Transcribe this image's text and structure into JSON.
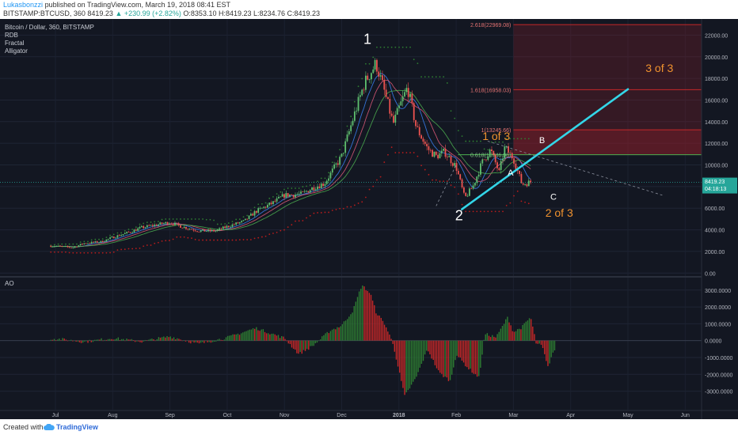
{
  "header": {
    "author": "Lukasbonzzi",
    "published": "published on TradingView.com, March 19, 2018 08:41 EST",
    "symbol": "BITSTAMP:BTCUSD, 360",
    "price": "8419.23",
    "change": "▲ +230.99 (+2.82%)",
    "ohlc": "O:8353.10 H:8419.23 L:8234.76 C:8419.23"
  },
  "legend": {
    "title": "Bitcoin / Dollar, 360, BITSTAMP",
    "indicators": [
      "RDB",
      "Fractal",
      "Alligator"
    ],
    "ao_label": "AO"
  },
  "footer": {
    "created": "Created with",
    "brand": "TradingView"
  },
  "colors": {
    "background": "#131722",
    "up": "#26a69a",
    "wave_line": "#33d6e8",
    "fib_zone": "#8e1f2a",
    "fib_line": "#c62828",
    "wave_orange": "#f0922e",
    "ao_green": "#2e7d32",
    "ao_red": "#c62828"
  },
  "chart_data": [
    {
      "type": "line",
      "title": "Bitcoin / Dollar, 360, BITSTAMP",
      "x_axis_labels": [
        "Jul",
        "Aug",
        "Sep",
        "Oct",
        "Nov",
        "Dec",
        "2018",
        "Feb",
        "Mar",
        "Apr",
        "May",
        "Jun"
      ],
      "y_ticks": [
        0,
        2000,
        4000,
        6000,
        8000,
        10000,
        12000,
        14000,
        16000,
        18000,
        20000,
        22000
      ],
      "y_tick_labels": [
        "0.00",
        "2000.00",
        "4000.00",
        "6000.00",
        "8000.00",
        "10000.00",
        "12000.00",
        "14000.00",
        "16000.00",
        "18000.00",
        "20000.00",
        "22000.00"
      ],
      "ylim": [
        -200,
        23200
      ],
      "x_month_index": [
        0,
        1,
        2,
        3,
        4,
        5,
        6,
        7,
        8,
        9,
        10,
        11
      ],
      "price_series": {
        "x": [
          -0.6,
          -0.3,
          0.0,
          0.3,
          0.5,
          0.8,
          1.0,
          1.3,
          1.5,
          1.8,
          2.0,
          2.2,
          2.5,
          2.8,
          3.0,
          3.3,
          3.5,
          3.8,
          4.0,
          4.3,
          4.5,
          4.7,
          5.0,
          5.2,
          5.4,
          5.6,
          5.75,
          5.9,
          6.0,
          6.15,
          6.3,
          6.5,
          6.65,
          6.8,
          7.0,
          7.15,
          7.3,
          7.45,
          7.6,
          7.75,
          7.85,
          8.0,
          8.15,
          8.3
        ],
        "y": [
          2600,
          2550,
          2500,
          2350,
          2750,
          2900,
          3300,
          3800,
          4200,
          4500,
          4700,
          4300,
          3900,
          3900,
          4300,
          4800,
          5700,
          6500,
          7200,
          7300,
          7900,
          8300,
          10800,
          14300,
          17600,
          19400,
          16700,
          13800,
          15200,
          17200,
          13500,
          11500,
          10800,
          11200,
          9800,
          6900,
          8100,
          10200,
          11400,
          9300,
          11600,
          10600,
          8200,
          8419
        ]
      },
      "fibonacci_levels": [
        {
          "ratio": "2.618",
          "price": 22969.08,
          "label": "2.618(22969.08)"
        },
        {
          "ratio": "1.618",
          "price": 16958.03,
          "label": "1.618(16958.03)"
        },
        {
          "ratio": "1",
          "price": 13245.66,
          "label": "1(13245.66)"
        },
        {
          "ratio": "0.618",
          "price": 10946.98,
          "label": "0.618(10946.98)"
        }
      ],
      "fib_zone_start_month": 8.0,
      "current_price_label": "8419.23",
      "countdown_label": "04:18:13",
      "trend_line": {
        "x": [
          7.1,
          10.0
        ],
        "y": [
          5900,
          17000
        ]
      },
      "annotations": [
        {
          "text": "1",
          "x": 5.45,
          "y": 21200,
          "color": "#ffffff"
        },
        {
          "text": "2",
          "x": 7.05,
          "y": 4900,
          "color": "#ffffff"
        },
        {
          "text": "1 of 3",
          "x": 7.7,
          "y": 12300,
          "color": "#f0922e"
        },
        {
          "text": "A",
          "x": 7.95,
          "y": 9000,
          "color": "#ffffff"
        },
        {
          "text": "B",
          "x": 8.5,
          "y": 12000,
          "color": "#ffffff"
        },
        {
          "text": "C",
          "x": 8.7,
          "y": 6800,
          "color": "#ffffff"
        },
        {
          "text": "2 of 3",
          "x": 8.8,
          "y": 5200,
          "color": "#f0922e"
        },
        {
          "text": "3 of 3",
          "x": 10.55,
          "y": 18600,
          "color": "#f0922e"
        }
      ]
    },
    {
      "type": "bar",
      "title": "AO",
      "y_ticks": [
        -3000,
        -2000,
        -1000,
        0,
        1000,
        2000,
        3000
      ],
      "y_tick_labels": [
        "-3000.0000",
        "-2000.0000",
        "-1000.0000",
        "0.0000",
        "1000.0000",
        "2000.0000",
        "3000.0000"
      ],
      "ylim": [
        -4100,
        3600
      ],
      "shape_points": {
        "x": [
          -0.6,
          0.0,
          0.5,
          1.0,
          1.5,
          2.0,
          2.5,
          3.0,
          3.5,
          4.0,
          4.25,
          4.5,
          4.8,
          5.0,
          5.2,
          5.35,
          5.5,
          5.6,
          5.75,
          5.9,
          6.0,
          6.1,
          6.3,
          6.5,
          6.7,
          6.9,
          7.0,
          7.2,
          7.4,
          7.5,
          7.7,
          7.9,
          8.0,
          8.15,
          8.3,
          8.4,
          8.5,
          8.6,
          8.7,
          8.8
        ],
        "y": [
          60,
          120,
          -80,
          150,
          -60,
          250,
          -200,
          180,
          750,
          150,
          -800,
          -300,
          600,
          900,
          1800,
          3300,
          2800,
          1700,
          1000,
          -200,
          -1800,
          -3300,
          -2200,
          -500,
          -1900,
          -2400,
          -800,
          -1600,
          -2200,
          400,
          200,
          1400,
          500,
          800,
          1400,
          -200,
          -300,
          -1600,
          -600,
          -900
        ]
      }
    }
  ]
}
